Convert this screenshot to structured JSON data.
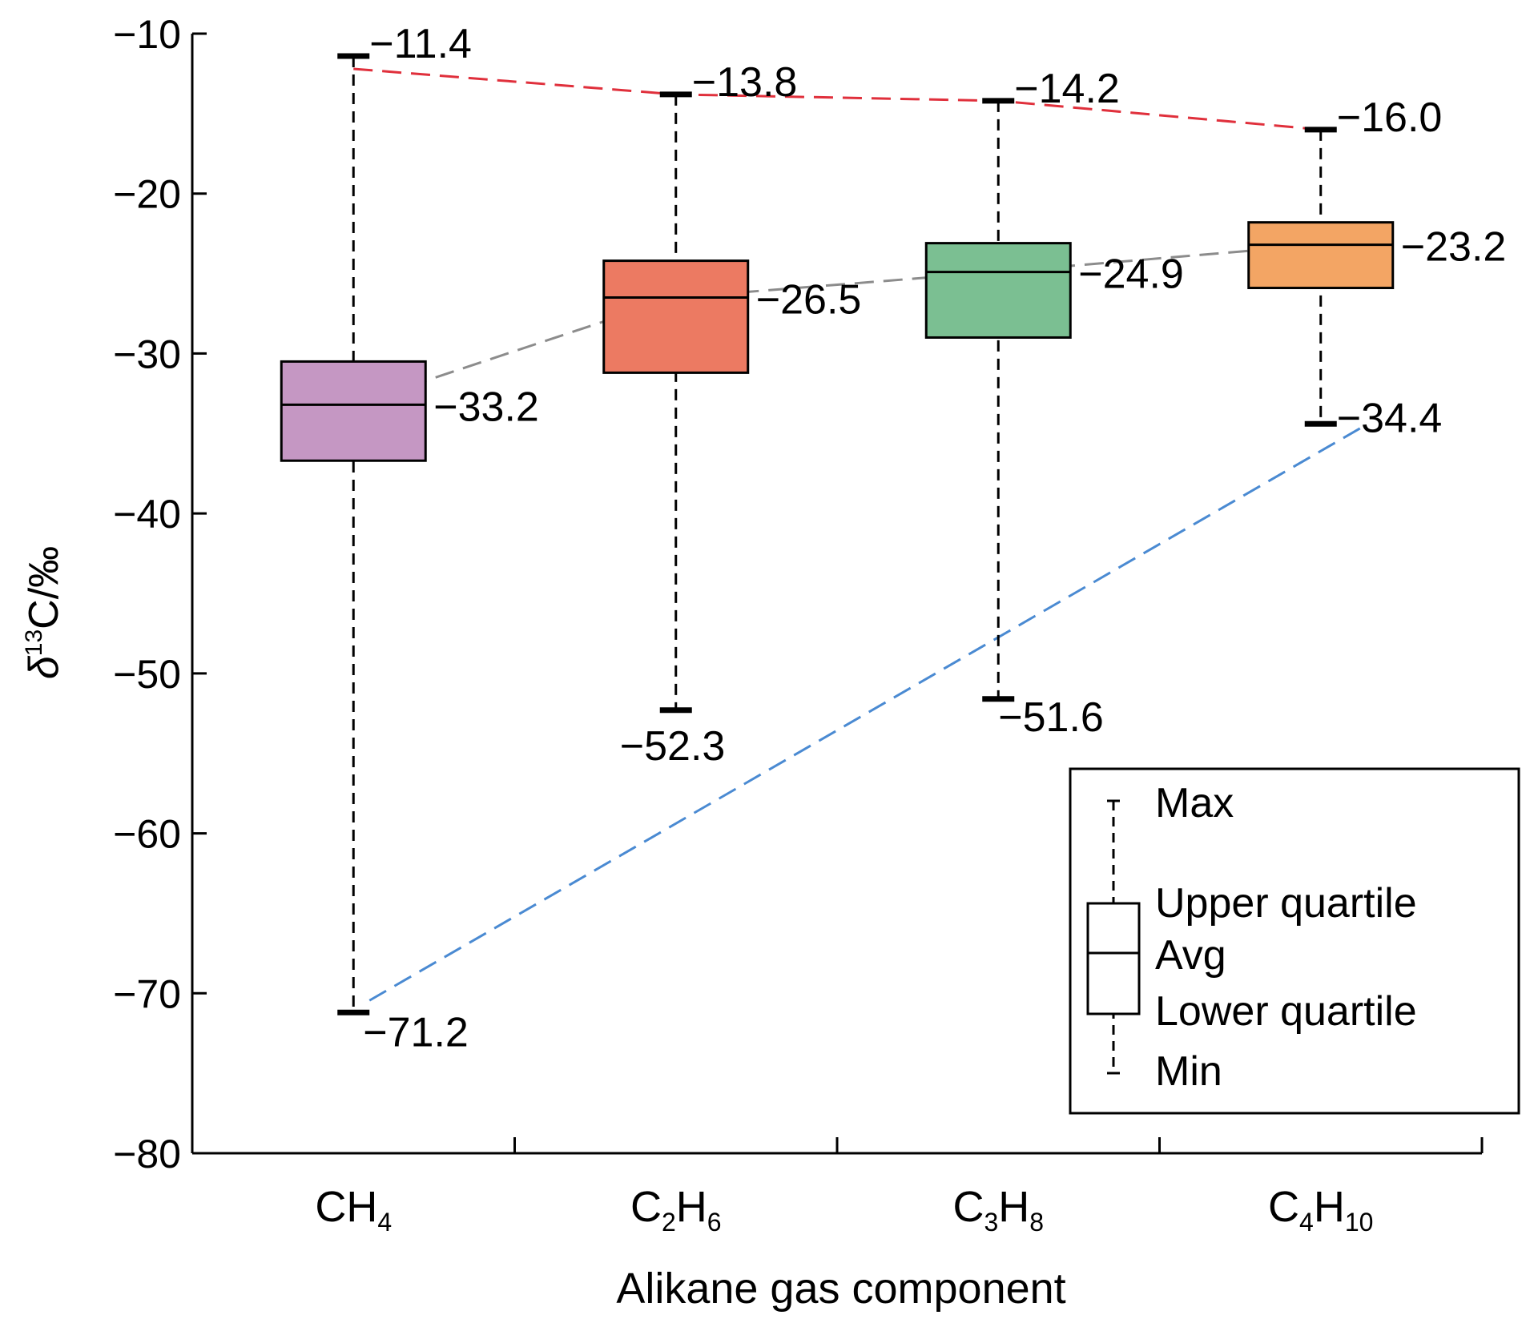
{
  "chart_data": {
    "type": "box",
    "xlabel": "Alikane gas component",
    "ylabel": {
      "prefix": "δ",
      "sup": "13",
      "rest": "C/‰"
    },
    "ylim": [
      -80,
      -10
    ],
    "y_ticks": [
      -10,
      -20,
      -30,
      -40,
      -50,
      -60,
      -70,
      -80
    ],
    "y_tick_labels": [
      "−10",
      "−20",
      "−30",
      "−40",
      "−50",
      "−60",
      "−70",
      "−80"
    ],
    "categories": [
      {
        "base": "CH",
        "sub1": "4",
        "mid": "",
        "sub2": ""
      },
      {
        "base": "C",
        "sub1": "2",
        "mid": "H",
        "sub2": "6"
      },
      {
        "base": "C",
        "sub1": "3",
        "mid": "H",
        "sub2": "8"
      },
      {
        "base": "C",
        "sub1": "4",
        "mid": "H",
        "sub2": "10"
      }
    ],
    "boxes": [
      {
        "max": -11.4,
        "q3": -30.5,
        "avg": -33.2,
        "q1": -36.7,
        "min": -71.2,
        "color": "#c597c3",
        "max_label": "−11.4",
        "avg_label": "−33.2",
        "min_label": "−71.2"
      },
      {
        "max": -13.8,
        "q3": -24.2,
        "avg": -26.5,
        "q1": -31.2,
        "min": -52.3,
        "color": "#ec7a62",
        "max_label": "−13.8",
        "avg_label": "−26.5",
        "min_label": "−52.3"
      },
      {
        "max": -14.2,
        "q3": -23.1,
        "avg": -24.9,
        "q1": -29.0,
        "min": -51.6,
        "color": "#7bbf92",
        "max_label": "−14.2",
        "avg_label": "−24.9",
        "min_label": "−51.6"
      },
      {
        "max": -16.0,
        "q3": -21.8,
        "avg": -23.2,
        "q1": -25.9,
        "min": -34.4,
        "color": "#f3a564",
        "max_label": "−16.0",
        "avg_label": "−23.2",
        "min_label": "−34.4"
      }
    ],
    "trend_lines": [
      {
        "stat": "max",
        "color": "#e0303c"
      },
      {
        "stat": "avg",
        "color": "#8c8c8c"
      },
      {
        "stat": "min",
        "color": "#4a8ad2"
      }
    ],
    "legend": {
      "position": "bottom-right",
      "items": [
        "Max",
        "Upper quartile",
        "Avg",
        "Lower quartile",
        "Min"
      ]
    }
  }
}
